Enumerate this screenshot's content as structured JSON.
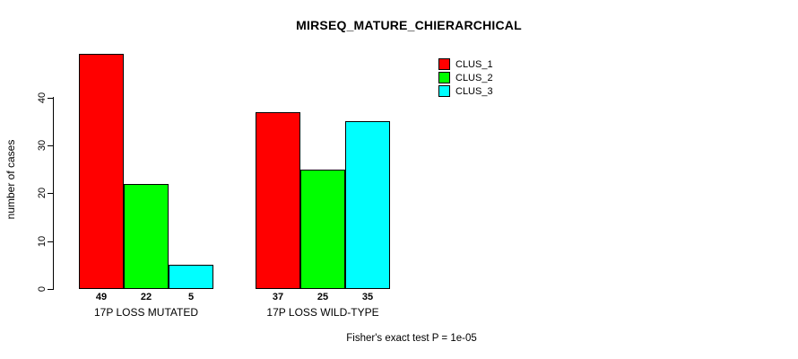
{
  "title": "MIRSEQ_MATURE_CHIERARCHICAL",
  "footer": "Fisher's exact test P = 1e-05",
  "chart_data": {
    "type": "bar",
    "title": "MIRSEQ_MATURE_CHIERARCHICAL",
    "ylabel": "number of cases",
    "xlabel": "",
    "categories": [
      "17P LOSS MUTATED",
      "17P LOSS WILD-TYPE"
    ],
    "series": [
      {
        "name": "CLUS_1",
        "color": "#FF0000",
        "values": [
          49,
          37
        ]
      },
      {
        "name": "CLUS_2",
        "color": "#00FF00",
        "values": [
          22,
          25
        ]
      },
      {
        "name": "CLUS_3",
        "color": "#00FFFF",
        "values": [
          5,
          35
        ]
      }
    ],
    "bar_value_labels": [
      [
        49,
        22,
        5
      ],
      [
        37,
        25,
        35
      ]
    ],
    "yticks": [
      0,
      10,
      20,
      30,
      40
    ],
    "ylim": [
      0,
      49
    ],
    "grid": false,
    "legend_position": "top-right",
    "legend_entries": [
      "CLUS_1",
      "CLUS_2",
      "CLUS_3"
    ],
    "annotation": "Fisher's exact test P = 1e-05"
  }
}
